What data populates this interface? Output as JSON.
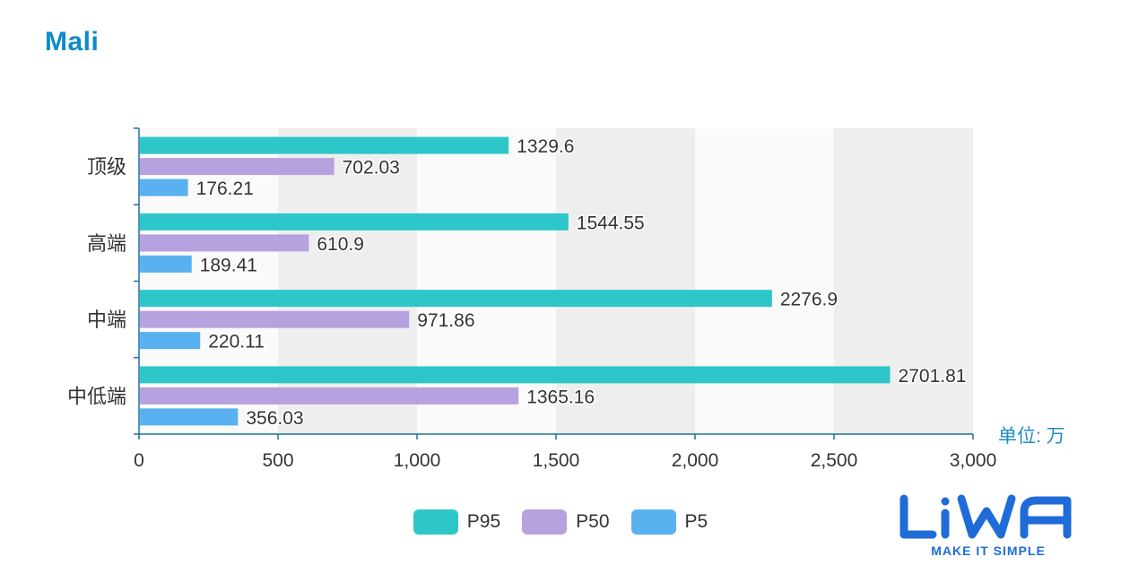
{
  "title": "Mali",
  "unit_label": "单位: 万",
  "logo": {
    "text": "LiWA",
    "tagline": "MAKE IT SIMPLE"
  },
  "colors": {
    "title": "#0e8ac8",
    "accent": "#1f8bc8",
    "axis": "#1f6fa0",
    "band_light": "#fafafa",
    "band_dark": "#eeeeee",
    "label_text": "#333333",
    "logo_blue": "#1f6cd9"
  },
  "chart_data": {
    "type": "bar",
    "orientation": "horizontal",
    "categories": [
      "顶级",
      "高端",
      "中端",
      "中低端"
    ],
    "series": [
      {
        "name": "P95",
        "color": "#2ec7c9",
        "values": [
          1329.6,
          1544.55,
          2276.9,
          2701.81
        ]
      },
      {
        "name": "P50",
        "color": "#b6a2de",
        "values": [
          702.03,
          610.9,
          971.86,
          1365.16
        ]
      },
      {
        "name": "P5",
        "color": "#5ab1ef",
        "values": [
          176.21,
          189.41,
          220.11,
          356.03
        ]
      }
    ],
    "value_labels": [
      [
        "1329.6",
        "1544.55",
        "2276.9",
        "2701.81"
      ],
      [
        "702.03",
        "610.9",
        "971.86",
        "1365.16"
      ],
      [
        "176.21",
        "189.41",
        "220.11",
        "356.03"
      ]
    ],
    "xlim": [
      0,
      3000
    ],
    "x_ticks": [
      0,
      500,
      1000,
      1500,
      2000,
      2500,
      3000
    ],
    "x_tick_labels": [
      "0",
      "500",
      "1,000",
      "1,500",
      "2,000",
      "2,500",
      "3,000"
    ],
    "xlabel": "单位: 万",
    "ylabel": "",
    "grid": "alternating vertical bands",
    "legend_position": "bottom-center"
  }
}
